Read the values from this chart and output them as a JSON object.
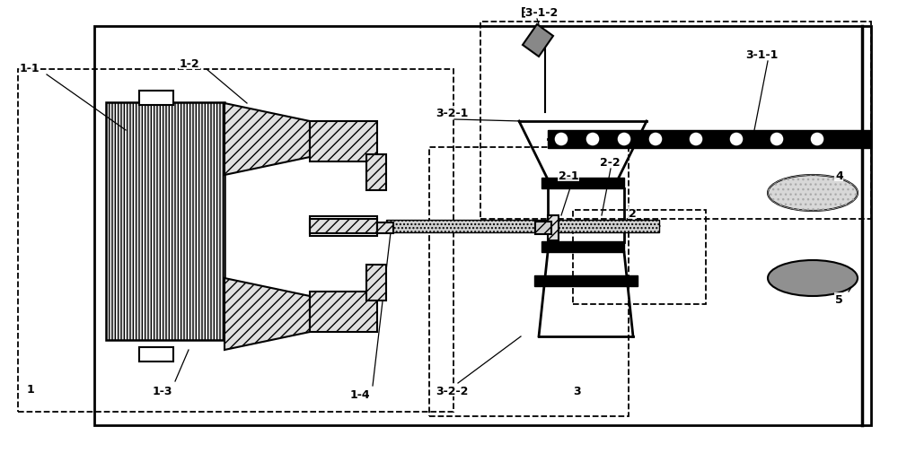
{
  "bg_color": "#ffffff",
  "lc": "#000000",
  "gray_hatch": "#d0d0d0",
  "gray_dark": "#888888",
  "gray_med": "#aaaaaa",
  "gray_light": "#cccccc"
}
